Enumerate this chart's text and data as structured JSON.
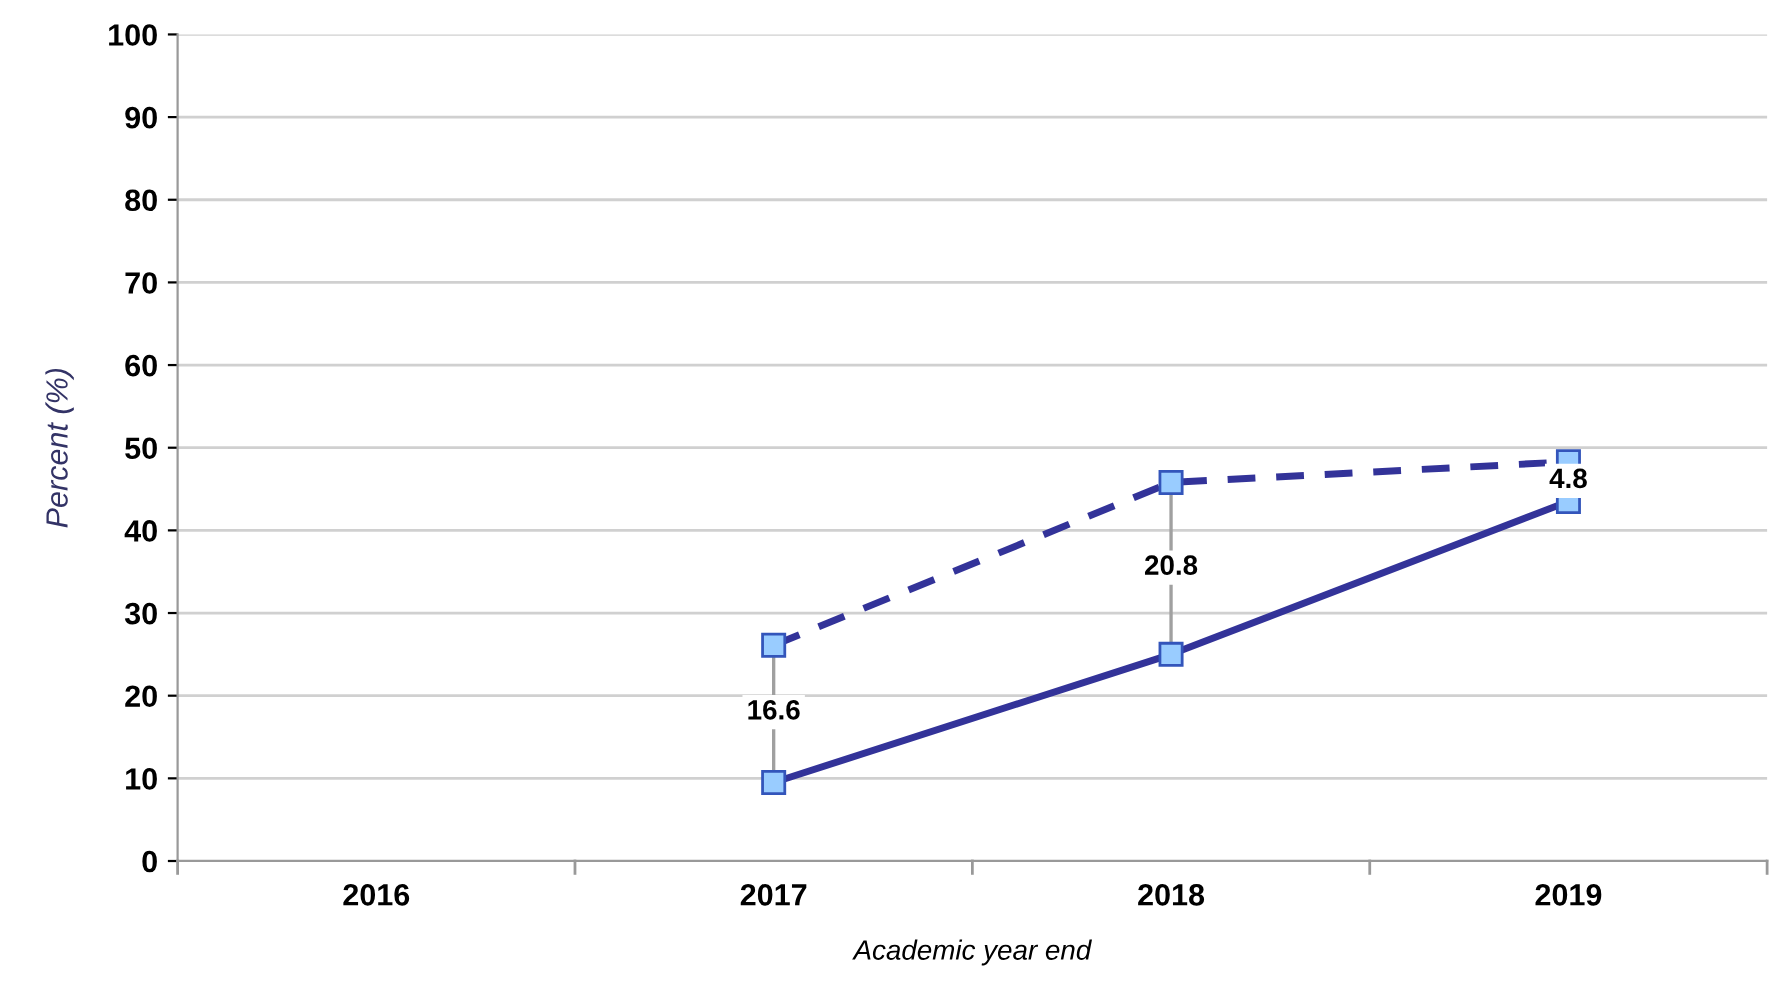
{
  "chart_data": {
    "type": "line",
    "xlabel": "Academic year end",
    "ylabel": "Percent (%)",
    "categories": [
      "2016",
      "2017",
      "2018",
      "2019"
    ],
    "series": [
      {
        "color": "#333399",
        "line_style": "dashed",
        "values": [
          null,
          26.1,
          45.8,
          48.3
        ]
      },
      {
        "color": "#333399",
        "line_style": "solid",
        "values": [
          null,
          9.5,
          25.0,
          43.5
        ]
      }
    ],
    "marker": "square",
    "annotations": [
      {
        "text": "16.6",
        "x": "2017",
        "y": 18
      },
      {
        "text": "20.8",
        "x": "2018",
        "y": 35.5
      },
      {
        "text": "4.8",
        "x": "2019",
        "y": 46
      }
    ],
    "ylim": [
      0,
      100
    ],
    "yticks": [
      0,
      10,
      20,
      30,
      40,
      50,
      60,
      70,
      80,
      90,
      100
    ],
    "grid": "y",
    "legend": false
  }
}
